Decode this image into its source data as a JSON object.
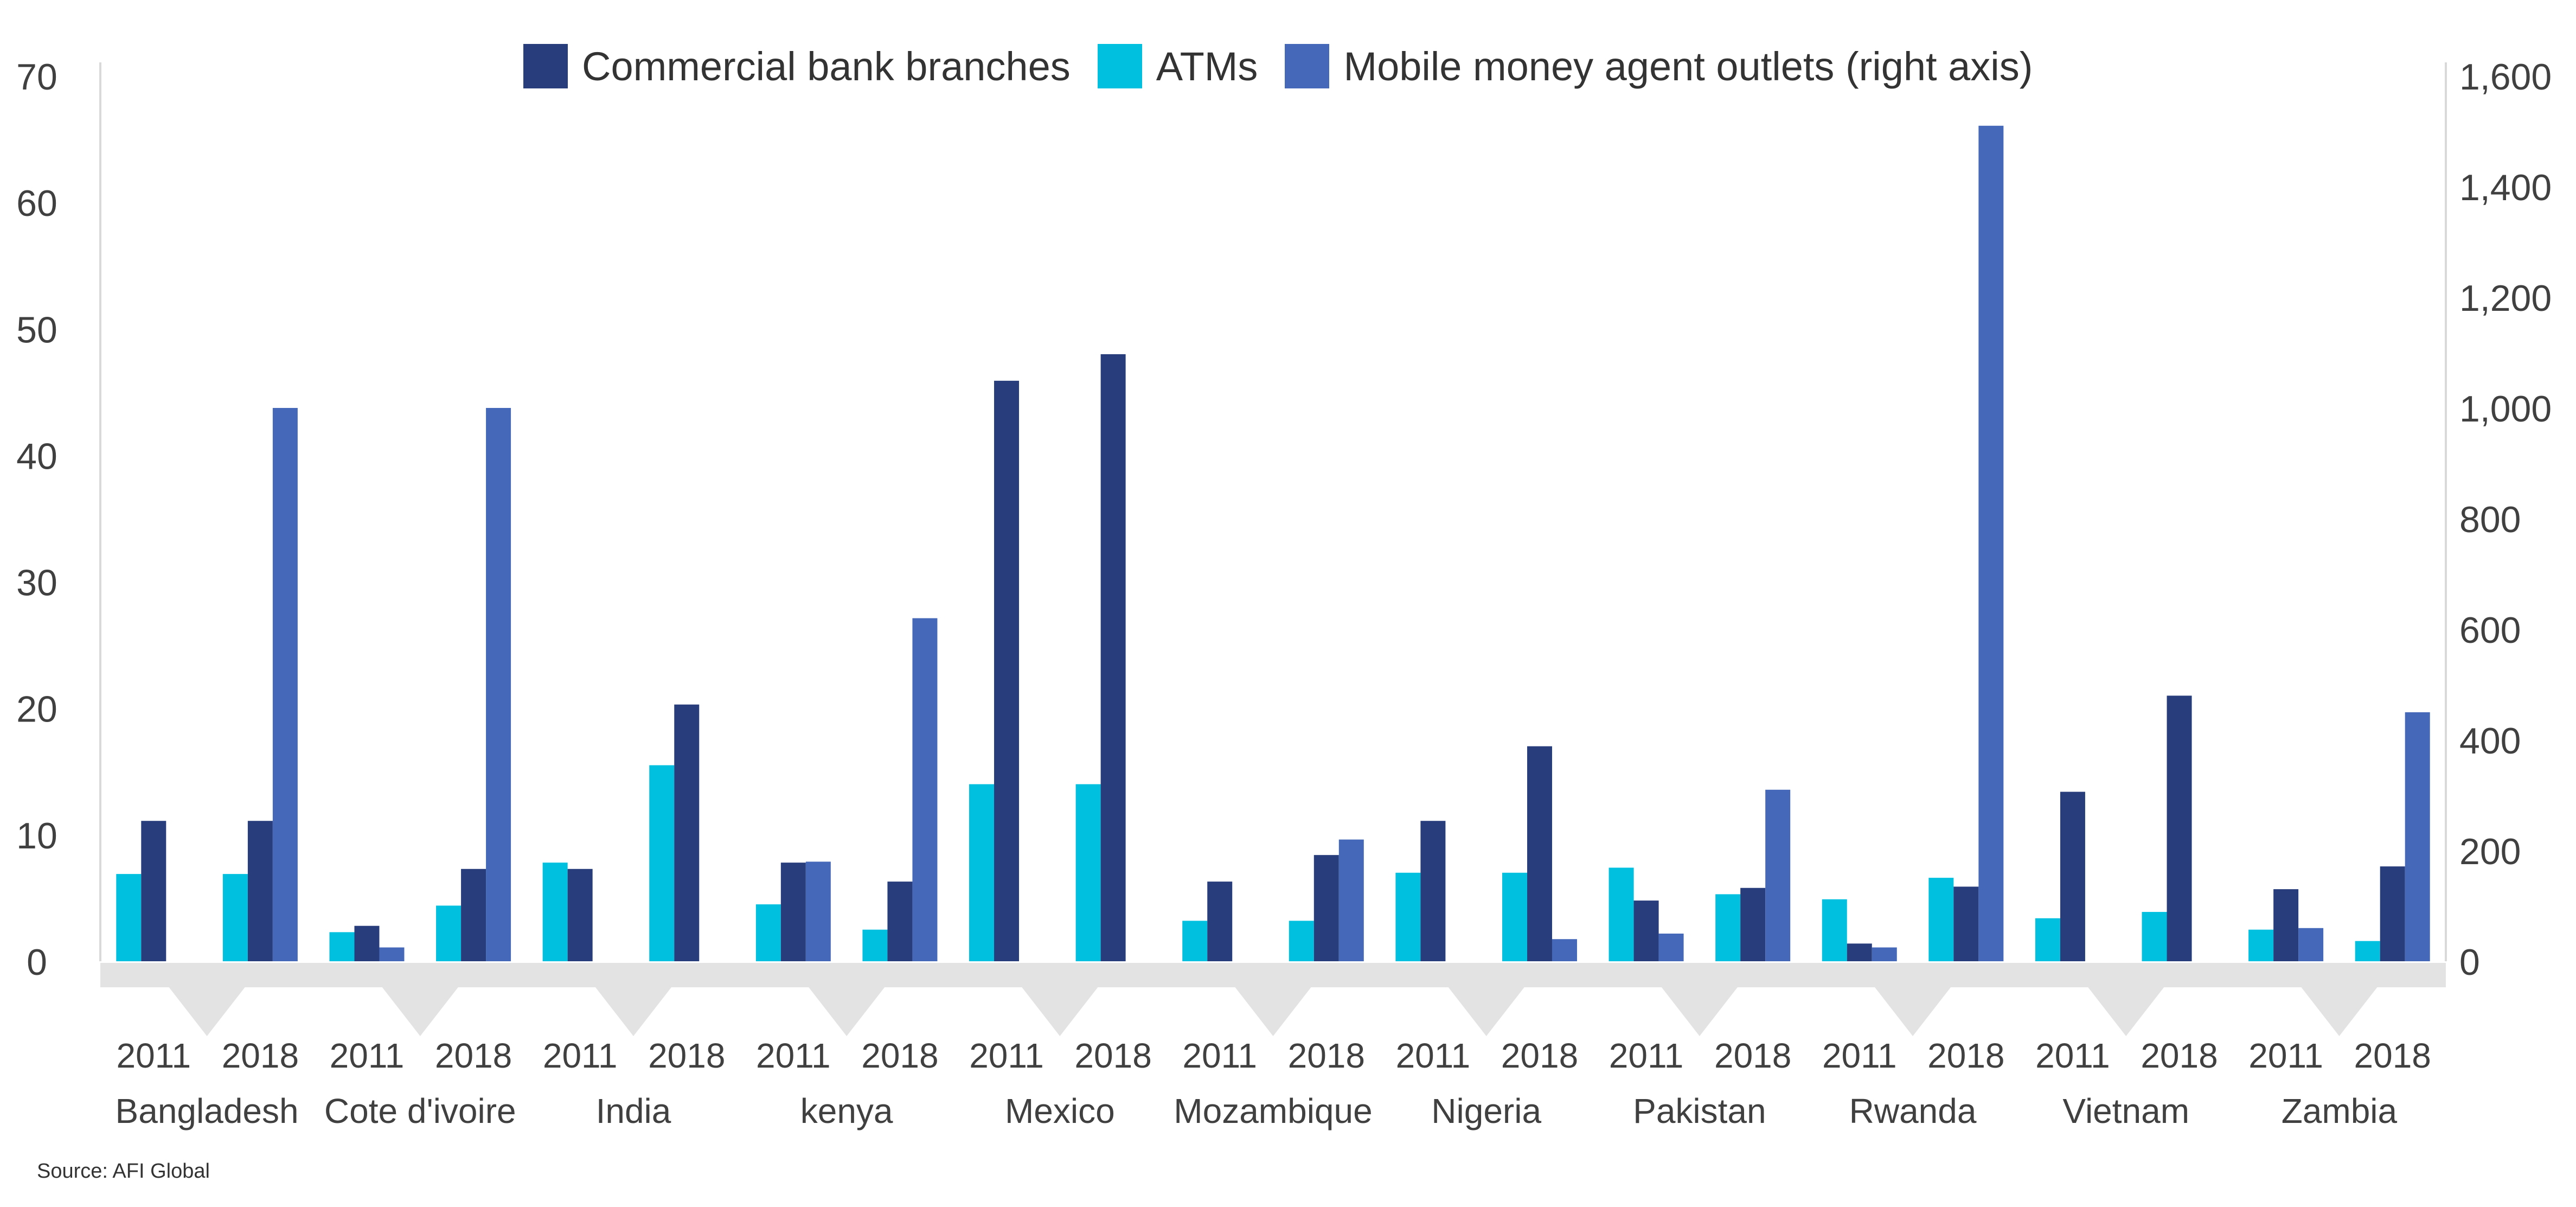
{
  "colors": {
    "branches": "#283d7c",
    "atms": "#00c0e0",
    "outlets": "#4569b8",
    "axis_text": "#404040",
    "band": "#e3e3e3"
  },
  "legend": {
    "branches_label": "Commercial bank branches",
    "atms_label": "ATMs",
    "outlets_label": "Mobile money agent outlets (right axis)"
  },
  "source": "Source: AFI Global",
  "chart_data": {
    "type": "bar",
    "left_axis": {
      "ylim": [
        0,
        70
      ],
      "ticks": [
        "0",
        "10",
        "20",
        "30",
        "40",
        "50",
        "60",
        "70"
      ]
    },
    "right_axis": {
      "ylim": [
        0,
        1600
      ],
      "ticks": [
        "0",
        "200",
        "400",
        "600",
        "800",
        "1,000",
        "1,200",
        "1,400",
        "1,600"
      ]
    },
    "years": [
      "2011",
      "2018"
    ],
    "countries": [
      "Bangladesh",
      "Cote d'ivoire",
      "India",
      "kenya",
      "Mexico",
      "Mozambique",
      "Nigeria",
      "Pakistan",
      "Rwanda",
      "Vietnam",
      "Zambia"
    ],
    "series": [
      {
        "name": "Commercial bank branches",
        "axis": "left",
        "values": [
          [
            11.1,
            11.1
          ],
          [
            2.8,
            7.3
          ],
          [
            7.3,
            20.3
          ],
          [
            7.8,
            6.3
          ],
          [
            45.9,
            48.0
          ],
          [
            6.3,
            8.4
          ],
          [
            11.1,
            17.0
          ],
          [
            4.8,
            5.8
          ],
          [
            1.4,
            5.9
          ],
          [
            13.4,
            21.0
          ],
          [
            5.7,
            7.5
          ]
        ]
      },
      {
        "name": "ATMs",
        "axis": "left",
        "values": [
          [
            6.9,
            6.9
          ],
          [
            2.3,
            4.4
          ],
          [
            7.8,
            15.5
          ],
          [
            4.5,
            2.5
          ],
          [
            14.0,
            14.0
          ],
          [
            3.2,
            3.2
          ],
          [
            7.0,
            7.0
          ],
          [
            7.4,
            5.3
          ],
          [
            4.9,
            6.6
          ],
          [
            3.4,
            3.9
          ],
          [
            2.5,
            1.6
          ]
        ]
      },
      {
        "name": "Mobile money agent outlets (right axis)",
        "axis": "right",
        "values": [
          [
            0,
            1000
          ],
          [
            25,
            1000
          ],
          [
            0,
            0
          ],
          [
            180,
            620
          ],
          [
            0,
            0
          ],
          [
            0,
            220
          ],
          [
            0,
            40
          ],
          [
            50,
            310
          ],
          [
            25,
            1510
          ],
          [
            0,
            0
          ],
          [
            60,
            450
          ]
        ]
      }
    ]
  }
}
